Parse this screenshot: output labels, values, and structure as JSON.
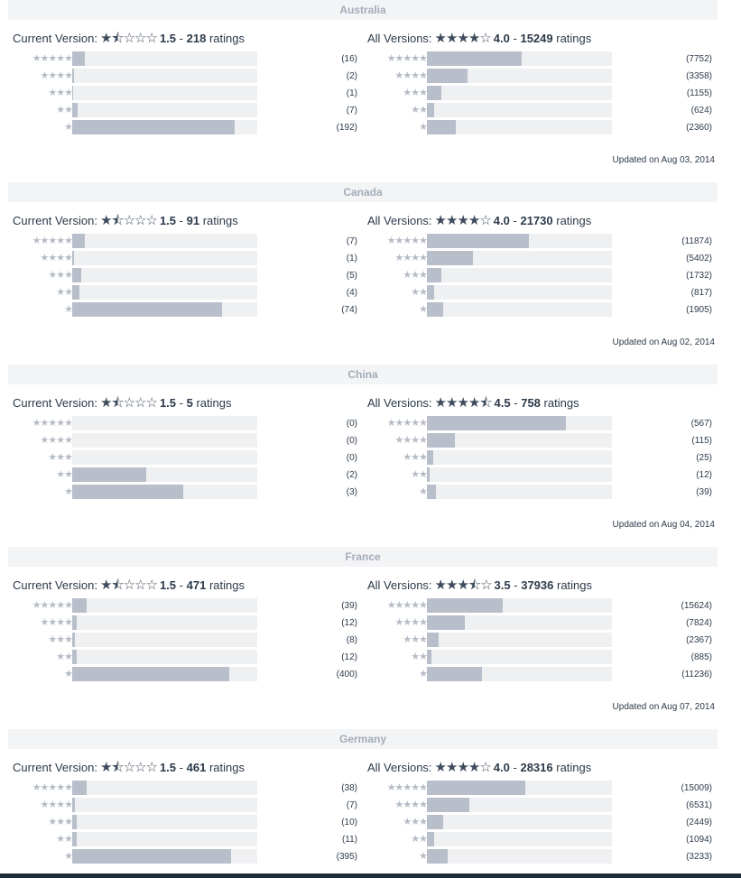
{
  "labels": {
    "current_prefix": "Current Version:",
    "all_prefix": "All Versions:",
    "ratings_word": "ratings",
    "separator": "-",
    "updated_prefix": "Updated on"
  },
  "star_rows": [
    "★★★★★",
    "★★★★",
    "★★★",
    "★★",
    "★"
  ],
  "countries": [
    {
      "name": "Australia",
      "current": {
        "stars": "★⯪☆☆☆",
        "average": "1.5",
        "total": "218",
        "counts": [
          16,
          2,
          1,
          7,
          192
        ],
        "fractions": [
          0.07,
          0.01,
          0.005,
          0.03,
          0.88
        ]
      },
      "all": {
        "stars": "★★★★☆",
        "average": "4.0",
        "total": "15249",
        "counts": [
          7752,
          3358,
          1155,
          624,
          2360
        ],
        "fractions": [
          0.51,
          0.22,
          0.076,
          0.04,
          0.155
        ]
      },
      "updated": "Aug 03, 2014"
    },
    {
      "name": "Canada",
      "current": {
        "stars": "★⯪☆☆☆",
        "average": "1.5",
        "total": "91",
        "counts": [
          7,
          1,
          5,
          4,
          74
        ],
        "fractions": [
          0.07,
          0.01,
          0.05,
          0.04,
          0.81
        ]
      },
      "all": {
        "stars": "★★★★☆",
        "average": "4.0",
        "total": "21730",
        "counts": [
          11874,
          5402,
          1732,
          817,
          1905
        ],
        "fractions": [
          0.55,
          0.25,
          0.08,
          0.038,
          0.088
        ]
      },
      "updated": "Aug 02, 2014"
    },
    {
      "name": "China",
      "current": {
        "stars": "★⯪☆☆☆",
        "average": "1.5",
        "total": "5",
        "counts": [
          0,
          0,
          0,
          2,
          3
        ],
        "fractions": [
          0,
          0,
          0,
          0.4,
          0.6
        ]
      },
      "all": {
        "stars": "★★★★⯪",
        "average": "4.5",
        "total": "758",
        "counts": [
          567,
          115,
          25,
          12,
          39
        ],
        "fractions": [
          0.75,
          0.15,
          0.033,
          0.016,
          0.051
        ]
      },
      "updated": "Aug 04, 2014"
    },
    {
      "name": "France",
      "current": {
        "stars": "★⯪☆☆☆",
        "average": "1.5",
        "total": "471",
        "counts": [
          39,
          12,
          8,
          12,
          400
        ],
        "fractions": [
          0.08,
          0.025,
          0.017,
          0.025,
          0.85
        ]
      },
      "all": {
        "stars": "★★★⯪☆",
        "average": "3.5",
        "total": "37936",
        "counts": [
          15624,
          7824,
          2367,
          885,
          11236
        ],
        "fractions": [
          0.41,
          0.206,
          0.062,
          0.023,
          0.296
        ]
      },
      "updated": "Aug 07, 2014"
    },
    {
      "name": "Germany",
      "current": {
        "stars": "★⯪☆☆☆",
        "average": "1.5",
        "total": "461",
        "counts": [
          38,
          7,
          10,
          11,
          395
        ],
        "fractions": [
          0.08,
          0.015,
          0.022,
          0.024,
          0.857
        ]
      },
      "all": {
        "stars": "★★★★☆",
        "average": "4.0",
        "total": "28316",
        "counts": [
          15009,
          6531,
          2449,
          1094,
          3233
        ],
        "fractions": [
          0.53,
          0.23,
          0.086,
          0.039,
          0.114
        ]
      },
      "updated": ""
    }
  ]
}
